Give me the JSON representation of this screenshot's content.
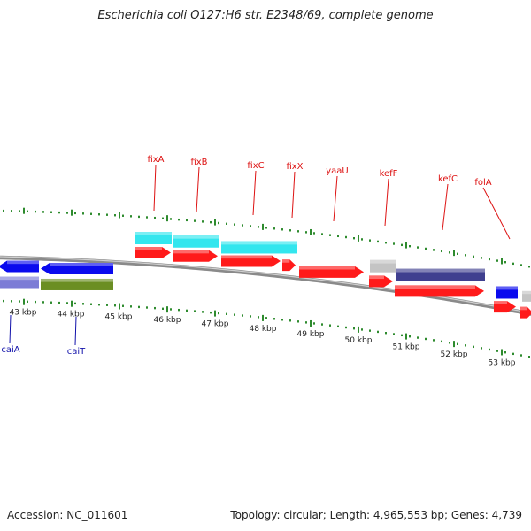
{
  "title": "Escherichia coli O127:H6 str. E2348/69, complete genome",
  "accession_text": "Accession: NC_011601",
  "topology_text": "Topology: circular; Length: 4,965,553 bp; Genes: 4,739",
  "colors": {
    "gene_red": "#ff1a1a",
    "gene_blue": "#0a0aee",
    "cyan": "#33e6ee",
    "navy": "#3f3f8f",
    "grey": "#c4c4c4",
    "purple": "#7c7cd6",
    "olive": "#6b8e23",
    "tick_green": "#2e8b2e",
    "label_red": "#dd1111",
    "label_blue": "#1111aa",
    "backbone": "#8a8a8a"
  },
  "axis_labels": [
    "43 kbp",
    "44 kbp",
    "45 kbp",
    "46 kbp",
    "47 kbp",
    "48 kbp",
    "49 kbp",
    "50 kbp",
    "51 kbp",
    "52 kbp",
    "53 kbp"
  ],
  "top_gene_labels": [
    "fixA",
    "fixB",
    "fixC",
    "fixX",
    "yaaU",
    "kefF",
    "kefC",
    "folA"
  ],
  "bottom_gene_labels": [
    "caiA",
    "caiT"
  ]
}
